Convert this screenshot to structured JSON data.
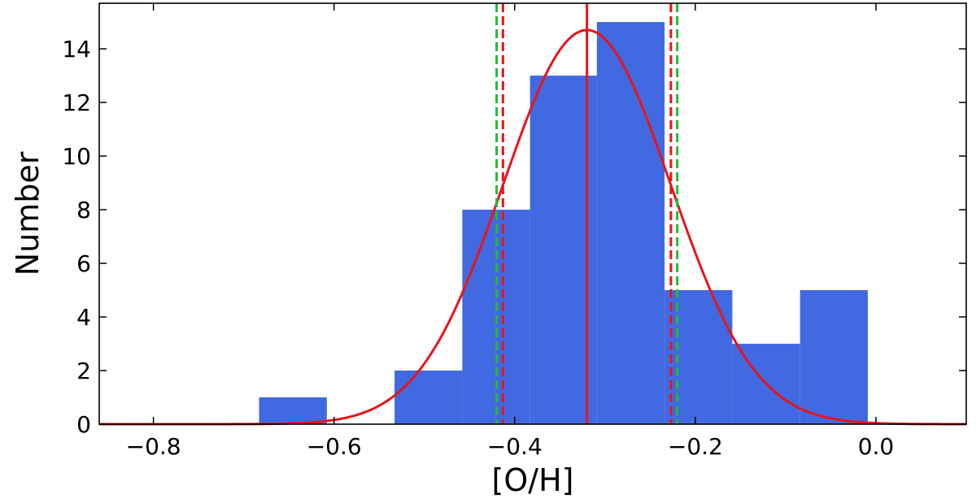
{
  "chart_data": {
    "type": "histogram",
    "title": "",
    "xlabel": "[O/H]",
    "ylabel": "Number",
    "xlim": [
      -0.86,
      0.1
    ],
    "ylim": [
      0,
      15.7
    ],
    "grid": false,
    "x_ticks": [
      -0.8,
      -0.6,
      -0.4,
      -0.2,
      0.0
    ],
    "x_tick_labels": [
      "−0.8",
      "−0.6",
      "−0.4",
      "−0.2",
      "0.0"
    ],
    "y_ticks": [
      0,
      2,
      4,
      6,
      8,
      10,
      12,
      14
    ],
    "y_tick_labels": [
      "0",
      "2",
      "4",
      "6",
      "8",
      "10",
      "12",
      "14"
    ],
    "bins": [
      {
        "left": -0.683,
        "right": -0.608,
        "count": 1
      },
      {
        "left": -0.608,
        "right": -0.533,
        "count": 0
      },
      {
        "left": -0.533,
        "right": -0.458,
        "count": 2
      },
      {
        "left": -0.458,
        "right": -0.383,
        "count": 8
      },
      {
        "left": -0.383,
        "right": -0.309,
        "count": 13
      },
      {
        "left": -0.309,
        "right": -0.234,
        "count": 15
      },
      {
        "left": -0.234,
        "right": -0.159,
        "count": 5
      },
      {
        "left": -0.159,
        "right": -0.084,
        "count": 3
      },
      {
        "left": -0.084,
        "right": -0.009,
        "count": 5
      }
    ],
    "gaussian_fit": {
      "mean": -0.32,
      "sigma": 0.093,
      "amplitude": 14.7
    },
    "vertical_lines": [
      {
        "x": -0.32,
        "style": "solid",
        "color": "#e8141b"
      },
      {
        "x": -0.413,
        "style": "dashed",
        "color": "#e8141b"
      },
      {
        "x": -0.227,
        "style": "dashed",
        "color": "#e8141b"
      },
      {
        "x": -0.42,
        "style": "dashed",
        "color": "#22bb33"
      },
      {
        "x": -0.22,
        "style": "dashed",
        "color": "#22bb33"
      }
    ],
    "colors": {
      "bars": "#4169e1",
      "fit": "#e8141b",
      "green": "#22bb33"
    }
  }
}
